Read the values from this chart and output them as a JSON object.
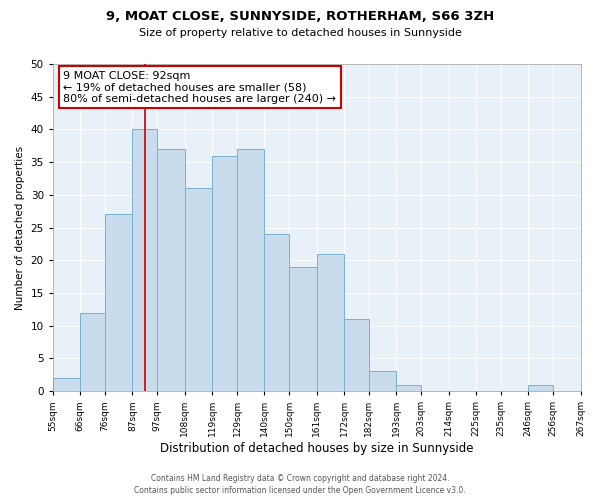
{
  "title": "9, MOAT CLOSE, SUNNYSIDE, ROTHERHAM, S66 3ZH",
  "subtitle": "Size of property relative to detached houses in Sunnyside",
  "xlabel": "Distribution of detached houses by size in Sunnyside",
  "ylabel": "Number of detached properties",
  "bin_edges": [
    55,
    66,
    76,
    87,
    97,
    108,
    119,
    129,
    140,
    150,
    161,
    172,
    182,
    193,
    203,
    214,
    225,
    235,
    246,
    256,
    267
  ],
  "counts": [
    2,
    12,
    27,
    40,
    37,
    31,
    36,
    37,
    24,
    19,
    21,
    11,
    3,
    1,
    0,
    0,
    0,
    0,
    1,
    0
  ],
  "bar_color": "#c8dced",
  "bar_edge_color": "#7ab0d0",
  "ylim": [
    0,
    50
  ],
  "yticks": [
    0,
    5,
    10,
    15,
    20,
    25,
    30,
    35,
    40,
    45,
    50
  ],
  "property_line_x": 92,
  "property_line_color": "#cc0000",
  "annotation_title": "9 MOAT CLOSE: 92sqm",
  "annotation_line1": "← 19% of detached houses are smaller (58)",
  "annotation_line2": "80% of semi-detached houses are larger (240) →",
  "annotation_box_color": "#cc0000",
  "footer_line1": "Contains HM Land Registry data © Crown copyright and database right 2024.",
  "footer_line2": "Contains public sector information licensed under the Open Government Licence v3.0.",
  "tick_labels": [
    "55sqm",
    "66sqm",
    "76sqm",
    "87sqm",
    "97sqm",
    "108sqm",
    "119sqm",
    "129sqm",
    "140sqm",
    "150sqm",
    "161sqm",
    "172sqm",
    "182sqm",
    "193sqm",
    "203sqm",
    "214sqm",
    "225sqm",
    "235sqm",
    "246sqm",
    "256sqm",
    "267sqm"
  ],
  "bg_color": "#e8f0f8",
  "grid_color": "#ffffff",
  "title_fontsize": 9.5,
  "subtitle_fontsize": 8.0,
  "xlabel_fontsize": 8.5,
  "ylabel_fontsize": 7.5,
  "tick_fontsize": 6.5,
  "annotation_fontsize": 8.0,
  "footer_fontsize": 5.5
}
